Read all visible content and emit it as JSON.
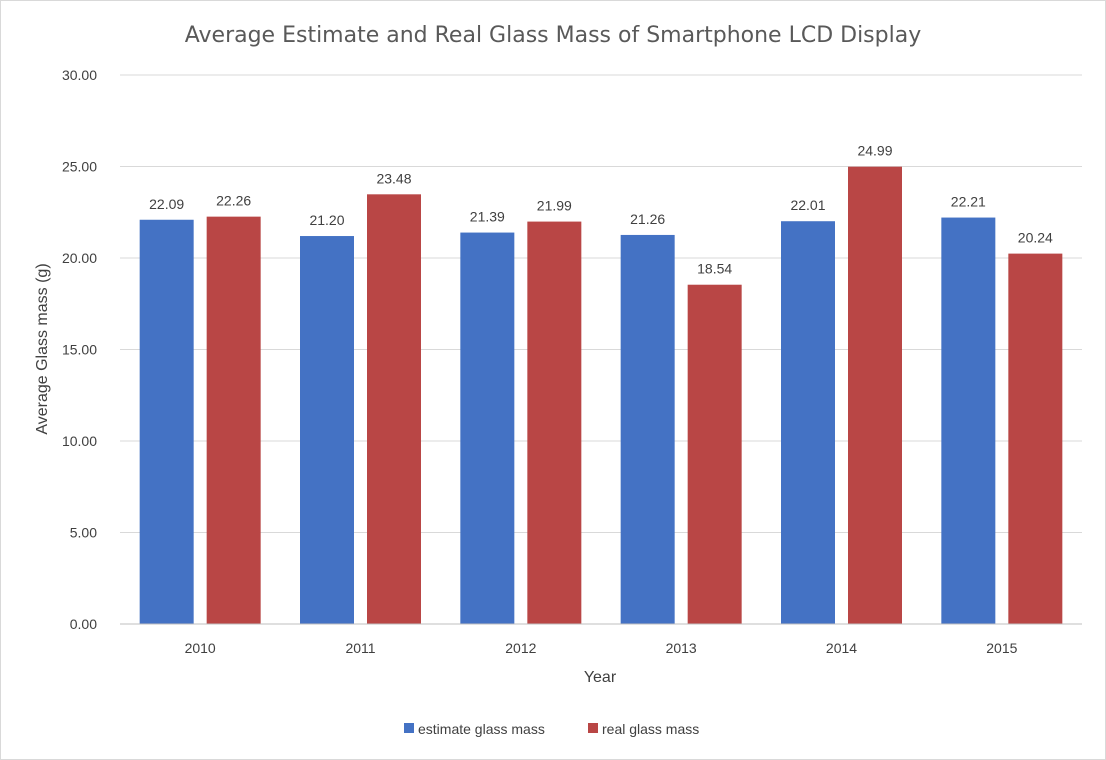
{
  "chart_data": {
    "type": "bar",
    "title": "Average Estimate and Real Glass Mass of Smartphone LCD Display",
    "xlabel": "Year",
    "ylabel": "Average Glass mass (g)",
    "categories": [
      "2010",
      "2011",
      "2012",
      "2013",
      "2014",
      "2015"
    ],
    "series": [
      {
        "name": "estimate glass mass",
        "color": "#4472C4",
        "values": [
          22.09,
          21.2,
          21.39,
          21.26,
          22.01,
          22.21
        ],
        "labels": [
          "22.09",
          "21.20",
          "21.39",
          "21.26",
          "22.01",
          "22.21"
        ]
      },
      {
        "name": "real glass mass",
        "color": "#B94645",
        "values": [
          22.26,
          23.48,
          21.99,
          18.54,
          24.99,
          20.24
        ],
        "labels": [
          "22.26",
          "23.48",
          "21.99",
          "18.54",
          "24.99",
          "20.24"
        ]
      }
    ],
    "ylim": [
      0,
      30
    ],
    "yticks": [
      "0.00",
      "5.00",
      "10.00",
      "15.00",
      "20.00",
      "25.00",
      "30.00"
    ],
    "grid": true,
    "legend": "bottom"
  }
}
